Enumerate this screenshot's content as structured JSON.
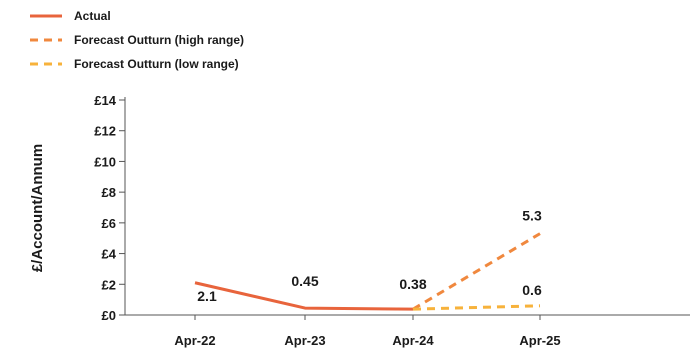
{
  "chart_data": {
    "type": "line",
    "title": "",
    "xlabel": "",
    "ylabel": "£/Account/Annum",
    "categories": [
      "Apr-22",
      "Apr-23",
      "Apr-24",
      "Apr-25"
    ],
    "y_ticks": [
      "£0",
      "£2",
      "£4",
      "£6",
      "£8",
      "£10",
      "£12",
      "£14"
    ],
    "ylim": [
      0,
      14
    ],
    "grid": false,
    "legend_position": "top-left",
    "series": [
      {
        "name": "Actual",
        "style": "solid",
        "color": "#e8643c",
        "points": [
          {
            "x": "Apr-22",
            "y": 2.1,
            "label": "2.1"
          },
          {
            "x": "Apr-23",
            "y": 0.45,
            "label": "0.45"
          },
          {
            "x": "Apr-24",
            "y": 0.38,
            "label": "0.38"
          }
        ]
      },
      {
        "name": "Forecast Outturn (high range)",
        "style": "dashed",
        "color": "#f0883e",
        "points": [
          {
            "x": "Apr-24",
            "y": 0.38,
            "label": ""
          },
          {
            "x": "Apr-25",
            "y": 5.3,
            "label": "5.3"
          }
        ]
      },
      {
        "name": "Forecast Outturn (low range)",
        "style": "dashed",
        "color": "#f7b23b",
        "points": [
          {
            "x": "Apr-24",
            "y": 0.38,
            "label": ""
          },
          {
            "x": "Apr-25",
            "y": 0.6,
            "label": "0.6"
          }
        ]
      }
    ]
  }
}
